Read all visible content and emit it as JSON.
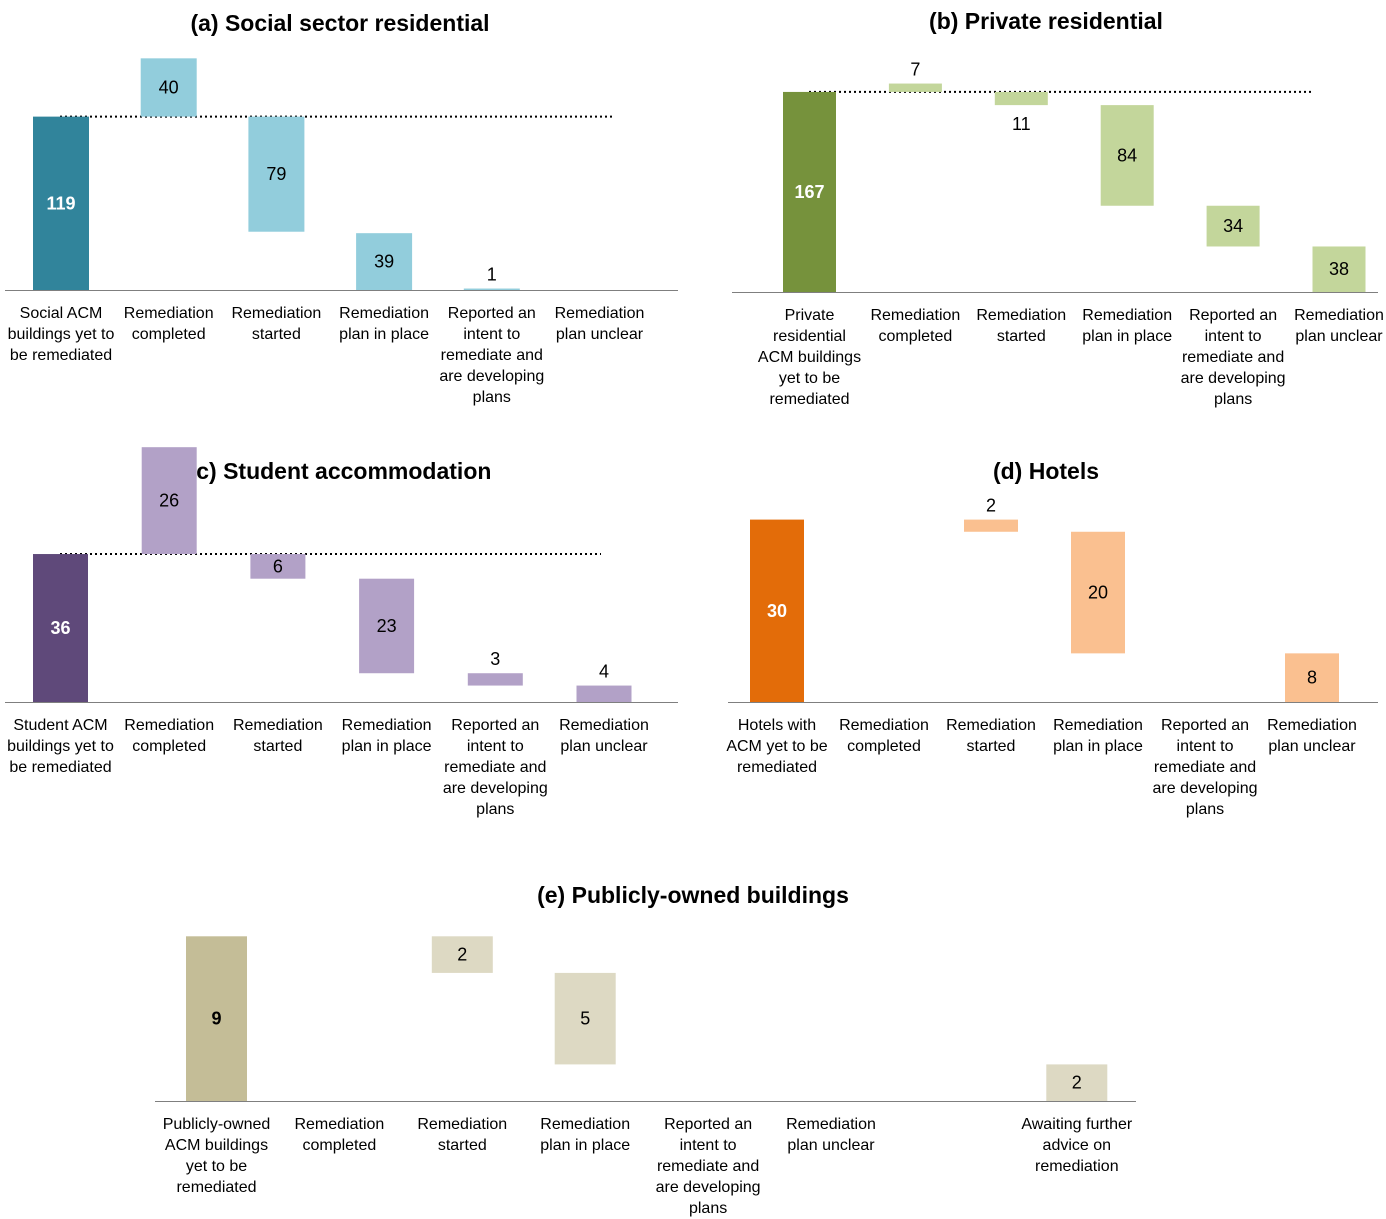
{
  "chart_data": [
    {
      "type": "bar",
      "subtype": "waterfall",
      "title": "(a) Social sector residential",
      "categories": [
        "Social ACM buildings yet to be remediated",
        "Remediation completed",
        "Remediation started",
        "Remediation plan in place",
        "Reported an intent to remediate and are developing plans",
        "Remediation plan unclear"
      ],
      "values": [
        119,
        40,
        79,
        39,
        1,
        null
      ],
      "labels": [
        "119",
        "40",
        "79",
        "39",
        "1",
        ""
      ],
      "bar_start": [
        0,
        119,
        40,
        0,
        0,
        null
      ],
      "bar_end": [
        119,
        159,
        119,
        39,
        1,
        null
      ],
      "total_line": 119,
      "colors": {
        "total": "#31849b",
        "step": "#92cddc",
        "total_text": "#ffffff",
        "step_text": "#000000"
      }
    },
    {
      "type": "bar",
      "subtype": "waterfall",
      "title": "(b) Private residential",
      "categories": [
        "Private residential ACM buildings yet to be remediated",
        "Remediation completed",
        "Remediation started",
        "Remediation plan in place",
        "Reported an intent to remediate and are developing plans",
        "Remediation plan unclear"
      ],
      "values": [
        167,
        7,
        11,
        84,
        34,
        38
      ],
      "labels": [
        "167",
        "7",
        "11",
        "84",
        "34",
        "38"
      ],
      "bar_start": [
        0,
        167,
        156,
        72,
        38,
        0
      ],
      "bar_end": [
        167,
        174,
        167,
        156,
        72,
        38
      ],
      "total_line": 167,
      "colors": {
        "total": "#76923c",
        "step": "#c3d69b",
        "total_text": "#ffffff",
        "step_text": "#000000"
      }
    },
    {
      "type": "bar",
      "subtype": "waterfall",
      "title": "(c) Student accommodation",
      "categories": [
        "Student ACM buildings yet to be remediated",
        "Remediation completed",
        "Remediation started",
        "Remediation plan in place",
        "Reported an intent to remediate and are developing plans",
        "Remediation plan unclear"
      ],
      "values": [
        36,
        26,
        6,
        23,
        3,
        4
      ],
      "labels": [
        "36",
        "26",
        "6",
        "23",
        "3",
        "4"
      ],
      "bar_start": [
        0,
        36,
        30,
        7,
        4,
        0
      ],
      "bar_end": [
        36,
        62,
        36,
        30,
        7,
        4
      ],
      "total_line": 36,
      "colors": {
        "total": "#5f497a",
        "step": "#b2a1c7",
        "total_text": "#ffffff",
        "step_text": "#000000"
      }
    },
    {
      "type": "bar",
      "subtype": "waterfall",
      "title": "(d) Hotels",
      "categories": [
        "Hotels with ACM yet to be remediated",
        "Remediation completed",
        "Remediation started",
        "Remediation plan in place",
        "Reported an intent to remediate and are developing plans",
        "Remediation plan unclear"
      ],
      "values": [
        30,
        null,
        2,
        20,
        null,
        8
      ],
      "labels": [
        "30",
        "",
        "2",
        "20",
        "",
        "8"
      ],
      "bar_start": [
        0,
        null,
        28,
        8,
        null,
        0
      ],
      "bar_end": [
        30,
        null,
        30,
        28,
        null,
        8
      ],
      "total_line": null,
      "colors": {
        "total": "#e36c09",
        "step": "#fac090",
        "total_text": "#ffffff",
        "step_text": "#000000"
      }
    },
    {
      "type": "bar",
      "subtype": "waterfall",
      "title": "(e) Publicly-owned buildings",
      "categories": [
        "Publicly-owned ACM buildings yet to be remediated",
        "Remediation completed",
        "Remediation started",
        "Remediation plan in place",
        "Reported an intent to remediate and are developing plans",
        "Remediation plan unclear",
        "",
        "Awaiting further advice on remediation"
      ],
      "values": [
        9,
        null,
        2,
        5,
        null,
        null,
        null,
        2
      ],
      "labels": [
        "9",
        "",
        "2",
        "5",
        "",
        "",
        "",
        "2"
      ],
      "bar_start": [
        0,
        null,
        7,
        2,
        null,
        null,
        null,
        0
      ],
      "bar_end": [
        9,
        null,
        9,
        7,
        null,
        null,
        null,
        2
      ],
      "total_line": null,
      "colors": {
        "total": "#c4bd97",
        "step": "#ddd9c3",
        "total_text": "#000000",
        "step_text": "#000000"
      }
    }
  ]
}
